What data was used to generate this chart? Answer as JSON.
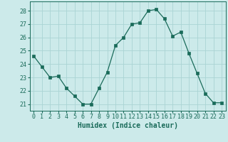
{
  "x": [
    0,
    1,
    2,
    3,
    4,
    5,
    6,
    7,
    8,
    9,
    10,
    11,
    12,
    13,
    14,
    15,
    16,
    17,
    18,
    19,
    20,
    21,
    22,
    23
  ],
  "y": [
    24.6,
    23.8,
    23.0,
    23.1,
    22.2,
    21.6,
    21.0,
    21.0,
    22.2,
    23.4,
    25.4,
    26.0,
    27.0,
    27.1,
    28.0,
    28.1,
    27.4,
    26.1,
    26.4,
    24.8,
    23.3,
    21.8,
    21.1,
    21.1
  ],
  "line_color": "#1a6b5a",
  "marker": "s",
  "marker_size": 2.5,
  "bg_color": "#cceaea",
  "grid_color": "#aad4d4",
  "xlabel": "Humidex (Indice chaleur)",
  "xlim": [
    -0.5,
    23.5
  ],
  "ylim": [
    20.5,
    28.7
  ],
  "yticks": [
    21,
    22,
    23,
    24,
    25,
    26,
    27,
    28
  ],
  "xticks": [
    0,
    1,
    2,
    3,
    4,
    5,
    6,
    7,
    8,
    9,
    10,
    11,
    12,
    13,
    14,
    15,
    16,
    17,
    18,
    19,
    20,
    21,
    22,
    23
  ],
  "xlabel_fontsize": 7,
  "tick_fontsize": 6
}
